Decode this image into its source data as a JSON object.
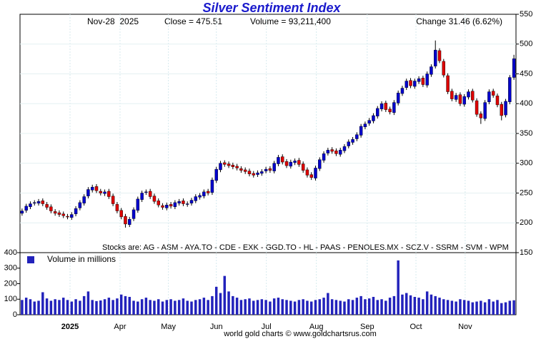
{
  "chart_data": [
    {
      "type": "candlestick",
      "title": "Silver Sentiment Index",
      "info": [
        "Nov-28  2025",
        "Close = 475.51",
        "Volume = 93,211,400",
        "Change 31.46 (6.62%)"
      ],
      "annotation": "Stocks are: AG - ASM - AYA.TO - CDE - EXK - GGD.TO - HL - PAAS - PENOLES.MX - SCZ.V - SSRM - SVM - WPM",
      "up_color": "#0000cc",
      "down_color": "#dd0000",
      "ylim": [
        150,
        550
      ],
      "yticks": [
        150,
        200,
        250,
        300,
        350,
        400,
        450,
        500,
        550
      ],
      "grid": true,
      "open": [
        216,
        221,
        227,
        233,
        233,
        237,
        231,
        227,
        219,
        217,
        215,
        211,
        209,
        215,
        225,
        233,
        245,
        255,
        261,
        253,
        249,
        253,
        245,
        231,
        221,
        211,
        197,
        207,
        221,
        239,
        251,
        253,
        245,
        237,
        229,
        225,
        231,
        227,
        233,
        237,
        231,
        233,
        237,
        243,
        245,
        253,
        251,
        271,
        289,
        301,
        299,
        297,
        295,
        291,
        289,
        287,
        283,
        281,
        283,
        287,
        291,
        287,
        299,
        311,
        303,
        295,
        301,
        305,
        299,
        289,
        281,
        275,
        291,
        305,
        317,
        323,
        321,
        315,
        321,
        329,
        335,
        341,
        347,
        361,
        367,
        371,
        379,
        391,
        401,
        391,
        385,
        401,
        417,
        427,
        439,
        429,
        437,
        443,
        431,
        449,
        463,
        489,
        471,
        447,
        421,
        407,
        415,
        399,
        411,
        421,
        405,
        383,
        375,
        403,
        421,
        413,
        399,
        381,
        403,
        444
      ],
      "high": [
        224,
        232,
        236,
        238,
        240,
        241,
        235,
        231,
        223,
        221,
        219,
        215,
        218,
        228,
        238,
        248,
        260,
        264,
        265,
        257,
        256,
        257,
        249,
        235,
        225,
        215,
        210,
        226,
        244,
        254,
        256,
        257,
        249,
        241,
        233,
        234,
        235,
        238,
        240,
        241,
        236,
        242,
        248,
        250,
        256,
        257,
        276,
        294,
        304,
        305,
        303,
        301,
        299,
        295,
        293,
        291,
        287,
        288,
        290,
        294,
        295,
        304,
        314,
        315,
        307,
        306,
        308,
        309,
        303,
        293,
        285,
        296,
        310,
        320,
        326,
        327,
        325,
        326,
        332,
        340,
        344,
        352,
        366,
        370,
        376,
        384,
        396,
        404,
        405,
        395,
        406,
        422,
        430,
        442,
        443,
        442,
        446,
        447,
        454,
        466,
        506,
        493,
        475,
        451,
        425,
        418,
        419,
        416,
        424,
        425,
        409,
        387,
        406,
        424,
        425,
        417,
        403,
        408,
        448,
        482
      ],
      "low": [
        212,
        217,
        223,
        229,
        229,
        228,
        222,
        216,
        212,
        210,
        208,
        206,
        205,
        211,
        221,
        229,
        241,
        251,
        250,
        246,
        245,
        240,
        228,
        216,
        206,
        192,
        193,
        203,
        217,
        235,
        247,
        240,
        232,
        226,
        222,
        221,
        224,
        223,
        229,
        228,
        227,
        229,
        233,
        239,
        241,
        246,
        247,
        267,
        285,
        294,
        292,
        290,
        288,
        284,
        282,
        278,
        276,
        277,
        279,
        283,
        284,
        283,
        295,
        298,
        292,
        291,
        297,
        294,
        284,
        276,
        272,
        271,
        287,
        301,
        313,
        316,
        312,
        311,
        317,
        325,
        331,
        337,
        343,
        357,
        363,
        367,
        375,
        387,
        386,
        382,
        381,
        397,
        413,
        423,
        426,
        425,
        433,
        428,
        427,
        445,
        459,
        468,
        444,
        416,
        404,
        403,
        396,
        395,
        407,
        402,
        378,
        366,
        371,
        399,
        410,
        394,
        372,
        377,
        399,
        440
      ],
      "close": [
        220,
        228,
        232,
        234,
        236,
        232,
        226,
        220,
        216,
        214,
        212,
        210,
        214,
        224,
        234,
        244,
        256,
        260,
        254,
        250,
        252,
        244,
        232,
        220,
        210,
        198,
        206,
        222,
        240,
        250,
        252,
        244,
        236,
        230,
        226,
        230,
        228,
        234,
        236,
        232,
        232,
        238,
        244,
        246,
        252,
        250,
        272,
        290,
        300,
        298,
        296,
        294,
        292,
        288,
        286,
        282,
        280,
        284,
        286,
        290,
        288,
        300,
        310,
        302,
        296,
        302,
        304,
        298,
        288,
        280,
        276,
        292,
        306,
        316,
        322,
        320,
        316,
        322,
        328,
        336,
        340,
        348,
        362,
        366,
        372,
        380,
        392,
        400,
        390,
        386,
        402,
        418,
        426,
        438,
        430,
        438,
        442,
        432,
        450,
        462,
        490,
        472,
        448,
        420,
        408,
        414,
        400,
        412,
        420,
        406,
        382,
        376,
        402,
        420,
        414,
        398,
        380,
        404,
        444,
        475.51
      ],
      "xlim": [
        -0.5,
        119.5
      ]
    },
    {
      "type": "bar",
      "source": "world gold charts © www.goldchartsrus.com",
      "series": [
        {
          "name": "Volume in millions",
          "color": "#2222bb",
          "values": [
            95,
            110,
            100,
            85,
            90,
            145,
            105,
            90,
            100,
            95,
            110,
            95,
            85,
            100,
            90,
            120,
            150,
            95,
            88,
            92,
            100,
            110,
            95,
            105,
            130,
            120,
            115,
            90,
            85,
            100,
            110,
            95,
            90,
            100,
            85,
            95,
            100,
            90,
            95,
            105,
            90,
            85,
            95,
            100,
            110,
            95,
            120,
            180,
            140,
            250,
            150,
            120,
            110,
            95,
            100,
            105,
            90,
            95,
            100,
            95,
            85,
            105,
            110,
            100,
            95,
            90,
            85,
            95,
            100,
            90,
            85,
            95,
            100,
            110,
            140,
            100,
            95,
            90,
            85,
            100,
            95,
            110,
            120,
            100,
            105,
            115,
            95,
            100,
            90,
            110,
            120,
            350,
            130,
            140,
            125,
            115,
            110,
            100,
            150,
            130,
            120,
            110,
            100,
            95,
            90,
            85,
            100,
            95,
            90,
            80,
            85,
            90,
            80,
            100,
            85,
            95,
            75,
            80,
            90,
            93.2114
          ]
        }
      ],
      "ylim": [
        0,
        400
      ],
      "yticks": [
        0,
        100,
        200,
        300,
        400
      ],
      "xlim": [
        -0.5,
        119.5
      ],
      "xticks": [
        {
          "value": 11.6,
          "label": "2025"
        },
        {
          "value": 23.7,
          "label": "Apr"
        },
        {
          "value": 35.4,
          "label": "May"
        },
        {
          "value": 47.0,
          "label": "Jun"
        },
        {
          "value": 59.1,
          "label": "Jul"
        },
        {
          "value": 71.2,
          "label": "Aug"
        },
        {
          "value": 83.5,
          "label": "Sep"
        },
        {
          "value": 95.3,
          "label": "Oct"
        },
        {
          "value": 107.2,
          "label": "Nov"
        }
      ]
    }
  ]
}
